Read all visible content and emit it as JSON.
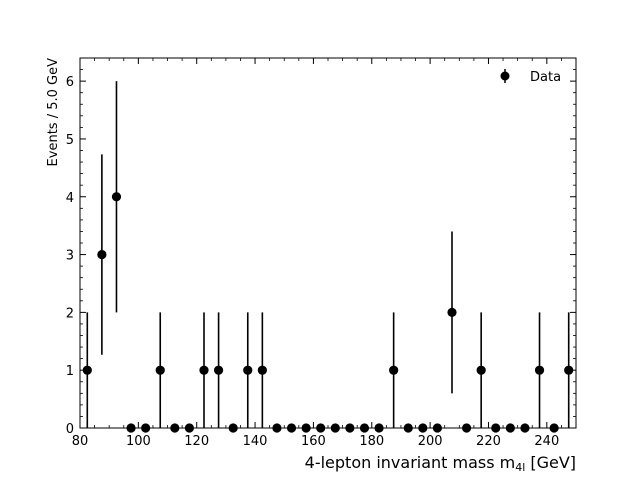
{
  "chart_data": {
    "type": "scatter",
    "xlabel": "4-lepton invariant mass m",
    "xlabel_sub": "4l",
    "xlabel_unit": "[GeV]",
    "ylabel": "Events / 5.0 GeV",
    "xlim": [
      80,
      250
    ],
    "ylim": [
      0,
      6.4
    ],
    "xticks": [
      80,
      100,
      120,
      140,
      160,
      180,
      200,
      220,
      240
    ],
    "yticks": [
      0,
      1,
      2,
      3,
      4,
      5,
      6
    ],
    "legend_position": "top-right",
    "grid": false,
    "series": [
      {
        "name": "Data",
        "error_bars": "poisson",
        "color": "#000000",
        "x": [
          82.5,
          87.5,
          92.5,
          97.5,
          102.5,
          107.5,
          112.5,
          117.5,
          122.5,
          127.5,
          132.5,
          137.5,
          142.5,
          147.5,
          152.5,
          157.5,
          162.5,
          167.5,
          172.5,
          177.5,
          182.5,
          187.5,
          192.5,
          197.5,
          202.5,
          207.5,
          212.5,
          217.5,
          222.5,
          227.5,
          232.5,
          237.5,
          242.5,
          247.5
        ],
        "y": [
          1,
          3,
          4,
          0,
          0,
          1,
          0,
          0,
          1,
          1,
          0,
          1,
          1,
          0,
          0,
          0,
          0,
          0,
          0,
          0,
          0,
          1,
          0,
          0,
          0,
          2,
          0,
          1,
          0,
          0,
          0,
          1,
          0,
          1
        ]
      }
    ]
  }
}
